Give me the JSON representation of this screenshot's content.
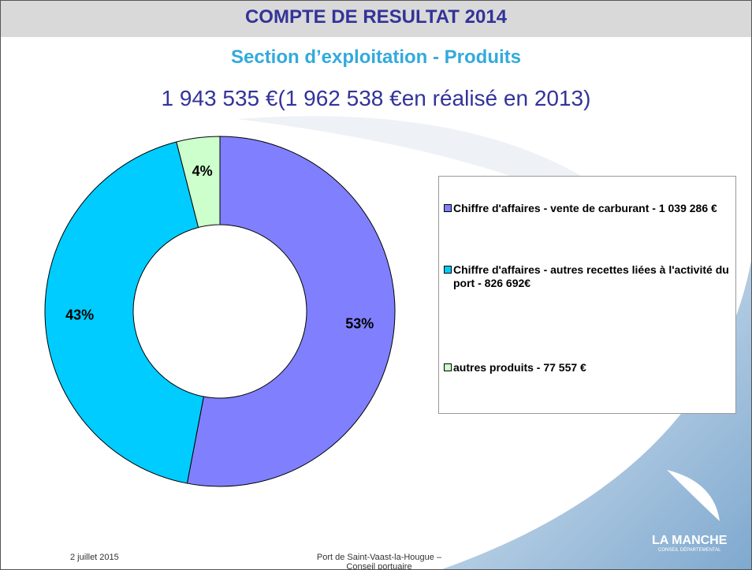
{
  "slide": {
    "title": "COMPTE DE RESULTAT 2014",
    "subtitle": "Section d’exploitation - Produits",
    "total": "1 943 535 €(1 962 538 €en réalisé en 2013)",
    "footer_date": "2 juillet 2015",
    "footer_text": "Port de Saint-Vaast-la-Hougue – Conseil portuaire",
    "logo": {
      "name": "LA MANCHE",
      "tagline": "CONSEIL DÉPARTEMENTAL"
    }
  },
  "chart_data": {
    "type": "donut",
    "categories": [
      "Chiffre d'affaires - vente de carburant - 1 039 286 €",
      "Chiffre d'affaires - autres recettes liées à l'activité du port - 826 692€",
      "autres produits - 77 557 €"
    ],
    "values": [
      53,
      43,
      4
    ],
    "value_labels": [
      "53%",
      "43%",
      "4%"
    ],
    "colors": [
      "#8080ff",
      "#00ccff",
      "#ccffcc"
    ],
    "legend": "right"
  }
}
